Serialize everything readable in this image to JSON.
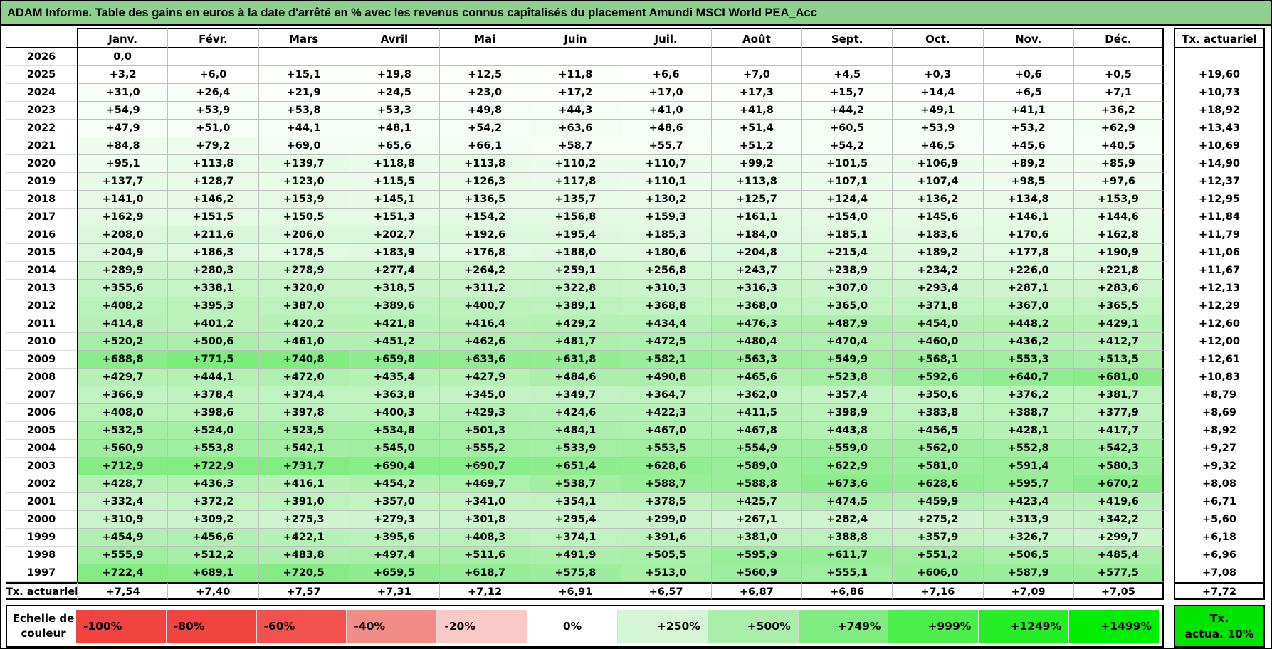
{
  "title": "ADAM Informe. Table des gains en euros à la date d'arrêté en % avec les revenus connus capîtalisés du placement Amundi MSCI World PEA_Acc",
  "table": {
    "month_headers": [
      "Janv.",
      "Févr.",
      "Mars",
      "Avril",
      "Mai",
      "Juin",
      "Juil.",
      "Août",
      "Sept.",
      "Oct.",
      "Nov.",
      "Déc."
    ],
    "right_column_header": "Tx. actuariel",
    "rows": [
      {
        "year": "2026",
        "values": [
          "0,0",
          "",
          "",
          "",
          "",
          "",
          "",
          "",
          "",
          "",
          "",
          ""
        ],
        "tx": ""
      },
      {
        "year": "2025",
        "values": [
          "+3,2",
          "+6,0",
          "+15,1",
          "+19,8",
          "+12,5",
          "+11,8",
          "+6,6",
          "+7,0",
          "+4,5",
          "+0,3",
          "+0,6",
          "+0,5"
        ],
        "tx": "+19,60"
      },
      {
        "year": "2024",
        "values": [
          "+31,0",
          "+26,4",
          "+21,9",
          "+24,5",
          "+23,0",
          "+17,2",
          "+17,0",
          "+17,3",
          "+15,7",
          "+14,4",
          "+6,5",
          "+7,1"
        ],
        "tx": "+10,73"
      },
      {
        "year": "2023",
        "values": [
          "+54,9",
          "+53,9",
          "+53,8",
          "+53,3",
          "+49,8",
          "+44,3",
          "+41,0",
          "+41,8",
          "+44,2",
          "+49,1",
          "+41,1",
          "+36,2"
        ],
        "tx": "+18,92"
      },
      {
        "year": "2022",
        "values": [
          "+47,9",
          "+51,0",
          "+44,1",
          "+48,1",
          "+54,2",
          "+63,6",
          "+48,6",
          "+51,4",
          "+60,5",
          "+53,9",
          "+53,2",
          "+62,9"
        ],
        "tx": "+13,43"
      },
      {
        "year": "2021",
        "values": [
          "+84,8",
          "+79,2",
          "+69,0",
          "+65,6",
          "+66,1",
          "+58,7",
          "+55,7",
          "+51,2",
          "+54,2",
          "+46,5",
          "+45,6",
          "+40,5"
        ],
        "tx": "+10,69"
      },
      {
        "year": "2020",
        "values": [
          "+95,1",
          "+113,8",
          "+139,7",
          "+118,8",
          "+113,8",
          "+110,2",
          "+110,7",
          "+99,2",
          "+101,5",
          "+106,9",
          "+89,2",
          "+85,9"
        ],
        "tx": "+14,90"
      },
      {
        "year": "2019",
        "values": [
          "+137,7",
          "+128,7",
          "+123,0",
          "+115,5",
          "+126,3",
          "+117,8",
          "+110,1",
          "+113,8",
          "+107,1",
          "+107,4",
          "+98,5",
          "+97,6"
        ],
        "tx": "+12,37"
      },
      {
        "year": "2018",
        "values": [
          "+141,0",
          "+146,2",
          "+153,9",
          "+145,1",
          "+136,5",
          "+135,7",
          "+130,2",
          "+125,7",
          "+124,4",
          "+136,2",
          "+134,8",
          "+153,9"
        ],
        "tx": "+12,95"
      },
      {
        "year": "2017",
        "values": [
          "+162,9",
          "+151,5",
          "+150,5",
          "+151,3",
          "+154,2",
          "+156,8",
          "+159,3",
          "+161,1",
          "+154,0",
          "+145,6",
          "+146,1",
          "+144,6"
        ],
        "tx": "+11,84"
      },
      {
        "year": "2016",
        "values": [
          "+208,0",
          "+211,6",
          "+206,0",
          "+202,7",
          "+192,6",
          "+195,4",
          "+185,3",
          "+184,0",
          "+185,1",
          "+183,6",
          "+170,6",
          "+162,8"
        ],
        "tx": "+11,79"
      },
      {
        "year": "2015",
        "values": [
          "+204,9",
          "+186,3",
          "+178,5",
          "+183,9",
          "+176,8",
          "+188,0",
          "+180,6",
          "+204,8",
          "+215,4",
          "+189,2",
          "+177,8",
          "+190,9"
        ],
        "tx": "+11,06"
      },
      {
        "year": "2014",
        "values": [
          "+289,9",
          "+280,3",
          "+278,9",
          "+277,4",
          "+264,2",
          "+259,1",
          "+256,8",
          "+243,7",
          "+238,9",
          "+234,2",
          "+226,0",
          "+221,8"
        ],
        "tx": "+11,67"
      },
      {
        "year": "2013",
        "values": [
          "+355,6",
          "+338,1",
          "+320,0",
          "+318,5",
          "+311,2",
          "+322,8",
          "+310,3",
          "+316,3",
          "+307,0",
          "+293,4",
          "+287,1",
          "+283,6"
        ],
        "tx": "+12,13"
      },
      {
        "year": "2012",
        "values": [
          "+408,2",
          "+395,3",
          "+387,0",
          "+389,6",
          "+400,7",
          "+389,1",
          "+368,8",
          "+368,0",
          "+365,0",
          "+371,8",
          "+367,0",
          "+365,5"
        ],
        "tx": "+12,29"
      },
      {
        "year": "2011",
        "values": [
          "+414,8",
          "+401,2",
          "+420,2",
          "+421,8",
          "+416,4",
          "+429,2",
          "+434,4",
          "+476,3",
          "+487,9",
          "+454,0",
          "+448,2",
          "+429,1"
        ],
        "tx": "+12,60"
      },
      {
        "year": "2010",
        "values": [
          "+520,2",
          "+500,6",
          "+461,0",
          "+451,2",
          "+462,6",
          "+481,7",
          "+472,5",
          "+480,4",
          "+470,4",
          "+460,0",
          "+436,2",
          "+412,7"
        ],
        "tx": "+12,00"
      },
      {
        "year": "2009",
        "values": [
          "+688,8",
          "+771,5",
          "+740,8",
          "+659,8",
          "+633,6",
          "+631,8",
          "+582,1",
          "+563,3",
          "+549,9",
          "+568,1",
          "+553,3",
          "+513,5"
        ],
        "tx": "+12,61"
      },
      {
        "year": "2008",
        "values": [
          "+429,7",
          "+444,1",
          "+472,0",
          "+435,4",
          "+427,9",
          "+484,6",
          "+490,8",
          "+465,6",
          "+523,8",
          "+592,6",
          "+640,7",
          "+681,0"
        ],
        "tx": "+10,83"
      },
      {
        "year": "2007",
        "values": [
          "+366,9",
          "+378,4",
          "+374,4",
          "+363,8",
          "+345,0",
          "+349,7",
          "+364,7",
          "+362,0",
          "+357,4",
          "+350,6",
          "+376,2",
          "+381,7"
        ],
        "tx": "+8,79"
      },
      {
        "year": "2006",
        "values": [
          "+408,0",
          "+398,6",
          "+397,8",
          "+400,3",
          "+429,3",
          "+424,6",
          "+422,3",
          "+411,5",
          "+398,9",
          "+383,8",
          "+388,7",
          "+377,9"
        ],
        "tx": "+8,69"
      },
      {
        "year": "2005",
        "values": [
          "+532,5",
          "+524,0",
          "+523,5",
          "+534,8",
          "+501,3",
          "+484,1",
          "+467,0",
          "+467,8",
          "+443,8",
          "+456,5",
          "+428,1",
          "+417,7"
        ],
        "tx": "+8,92"
      },
      {
        "year": "2004",
        "values": [
          "+560,9",
          "+553,8",
          "+542,1",
          "+545,0",
          "+555,2",
          "+533,9",
          "+553,5",
          "+554,9",
          "+559,0",
          "+562,0",
          "+552,8",
          "+542,3"
        ],
        "tx": "+9,27"
      },
      {
        "year": "2003",
        "values": [
          "+712,9",
          "+722,9",
          "+731,7",
          "+690,4",
          "+690,7",
          "+651,4",
          "+628,6",
          "+589,0",
          "+622,9",
          "+581,0",
          "+591,4",
          "+580,3"
        ],
        "tx": "+9,32"
      },
      {
        "year": "2002",
        "values": [
          "+428,7",
          "+436,3",
          "+416,1",
          "+454,2",
          "+469,7",
          "+538,7",
          "+588,7",
          "+588,8",
          "+673,6",
          "+628,6",
          "+595,7",
          "+670,2"
        ],
        "tx": "+8,08"
      },
      {
        "year": "2001",
        "values": [
          "+332,4",
          "+372,2",
          "+391,0",
          "+357,0",
          "+341,0",
          "+354,1",
          "+378,5",
          "+425,7",
          "+474,5",
          "+459,9",
          "+423,4",
          "+419,6"
        ],
        "tx": "+6,71"
      },
      {
        "year": "2000",
        "values": [
          "+310,9",
          "+309,2",
          "+275,3",
          "+279,3",
          "+301,8",
          "+295,4",
          "+299,0",
          "+267,1",
          "+282,4",
          "+275,2",
          "+313,9",
          "+342,2"
        ],
        "tx": "+5,60"
      },
      {
        "year": "1999",
        "values": [
          "+454,9",
          "+456,6",
          "+422,1",
          "+395,6",
          "+408,3",
          "+374,1",
          "+391,6",
          "+381,0",
          "+388,8",
          "+357,9",
          "+326,7",
          "+299,7"
        ],
        "tx": "+6,18"
      },
      {
        "year": "1998",
        "values": [
          "+555,9",
          "+512,2",
          "+483,8",
          "+497,4",
          "+511,6",
          "+491,9",
          "+505,5",
          "+595,9",
          "+611,7",
          "+551,2",
          "+506,5",
          "+485,4"
        ],
        "tx": "+6,96"
      },
      {
        "year": "1997",
        "values": [
          "+722,4",
          "+689,1",
          "+720,5",
          "+659,5",
          "+618,7",
          "+575,8",
          "+513,0",
          "+560,9",
          "+555,1",
          "+606,0",
          "+587,9",
          "+577,5"
        ],
        "tx": "+7,08"
      },
      {
        "year": "Tx. actuariel",
        "summary": true,
        "values": [
          "+7,54",
          "+7,40",
          "+7,57",
          "+7,31",
          "+7,12",
          "+6,91",
          "+6,57",
          "+6,87",
          "+6,86",
          "+7,16",
          "+7,09",
          "+7,05"
        ],
        "tx": "+7,72"
      }
    ]
  },
  "legend": {
    "label_line1": "Echelle de",
    "label_line2": "couleur",
    "entries": [
      {
        "label": "-100%",
        "color": "#F14340",
        "align": "left"
      },
      {
        "label": "-80%",
        "color": "#F14340",
        "align": "left"
      },
      {
        "label": "-60%",
        "color": "#F2524E",
        "align": "left"
      },
      {
        "label": "-40%",
        "color": "#F28C86",
        "align": "left"
      },
      {
        "label": "-20%",
        "color": "#F8C9C7",
        "align": "left"
      },
      {
        "label": "0%",
        "color": "#FFFFFF",
        "align": "center"
      },
      {
        "label": "+250%",
        "color": "#D4F6D4",
        "align": "right"
      },
      {
        "label": "+500%",
        "color": "#A9EFA9",
        "align": "right"
      },
      {
        "label": "+749%",
        "color": "#7FEC7F",
        "align": "right"
      },
      {
        "label": "+999%",
        "color": "#4CEE4C",
        "align": "right"
      },
      {
        "label": "+1249%",
        "color": "#26EE26",
        "align": "right"
      },
      {
        "label": "+1499%",
        "color": "#00EE00",
        "align": "right"
      }
    ],
    "tx_box": {
      "line1": "Tx.",
      "line2": "actua. 10%",
      "color": "#00E400"
    }
  },
  "colors": {
    "title_bar": "#8FD08F",
    "grid_line": "#BFBFBF",
    "positive_scale": [
      [
        0,
        "#FFFFFF"
      ],
      [
        250,
        "#D4F6D4"
      ],
      [
        500,
        "#A9EFA9"
      ],
      [
        749,
        "#7FEC7F"
      ],
      [
        999,
        "#4CEE4C"
      ],
      [
        1249,
        "#26EE26"
      ],
      [
        1499,
        "#00EE00"
      ]
    ]
  }
}
